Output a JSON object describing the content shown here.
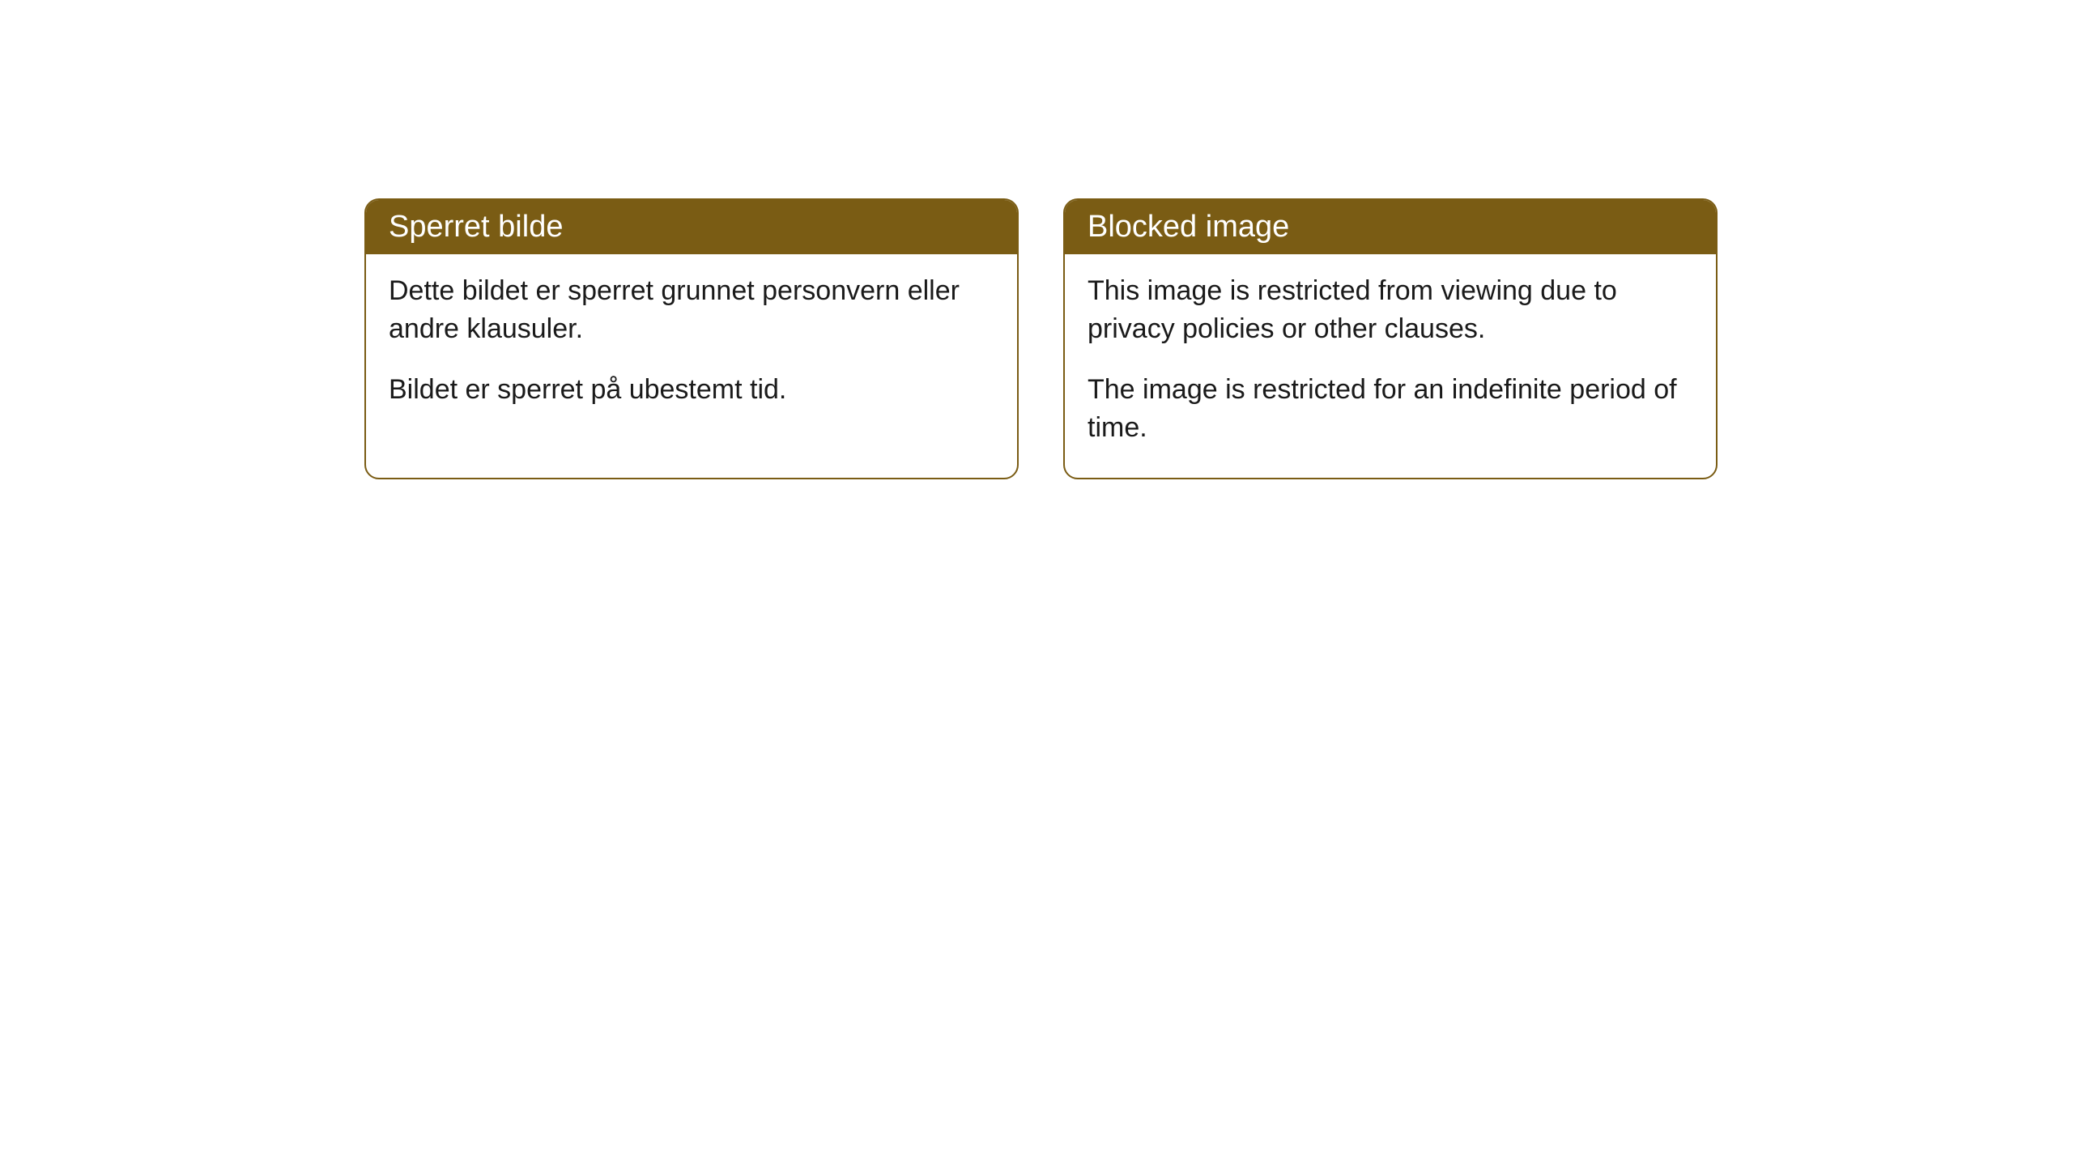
{
  "cards": [
    {
      "title": "Sperret bilde",
      "paragraph1": "Dette bildet er sperret grunnet personvern eller andre klausuler.",
      "paragraph2": "Bildet er sperret på ubestemt tid."
    },
    {
      "title": "Blocked image",
      "paragraph1": "This image is restricted from viewing due to privacy policies or other clauses.",
      "paragraph2": "The image is restricted for an indefinite period of time."
    }
  ],
  "styling": {
    "header_bg_color": "#7a5c14",
    "header_text_color": "#ffffff",
    "border_color": "#7a5c14",
    "body_bg_color": "#ffffff",
    "body_text_color": "#1a1a1a",
    "border_radius": 18,
    "header_fontsize": 38,
    "body_fontsize": 34
  }
}
